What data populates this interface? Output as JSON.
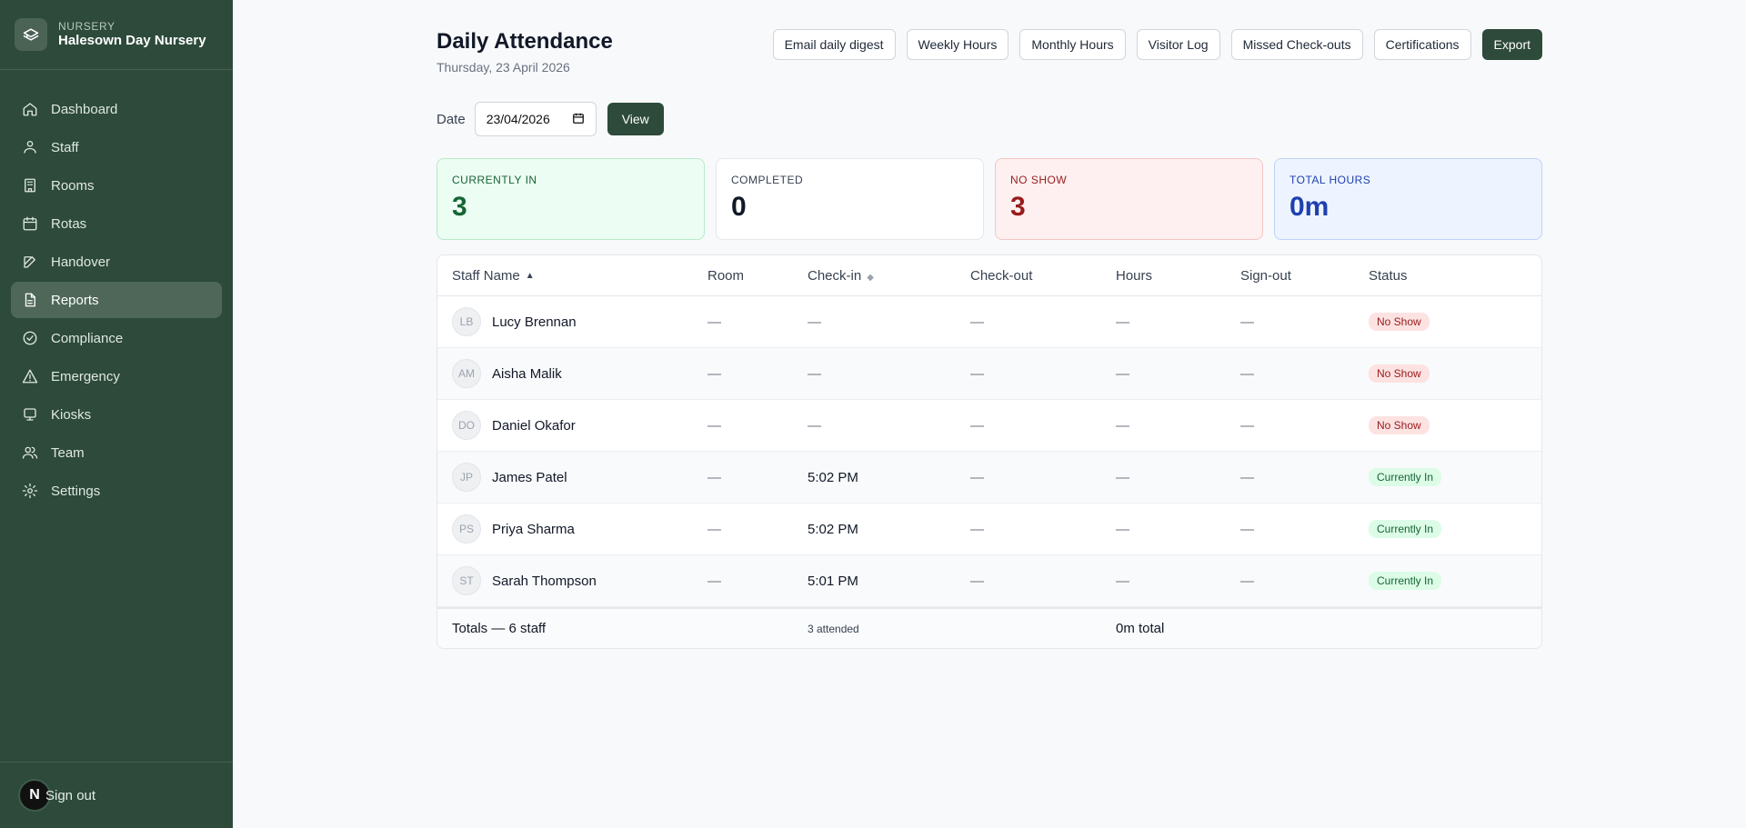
{
  "brand": {
    "kicker": "NURSERY",
    "name": "Halesown Day Nursery"
  },
  "nav": [
    {
      "label": "Dashboard",
      "icon": "home-icon"
    },
    {
      "label": "Staff",
      "icon": "person-icon"
    },
    {
      "label": "Rooms",
      "icon": "building-icon"
    },
    {
      "label": "Rotas",
      "icon": "calendar-icon"
    },
    {
      "label": "Handover",
      "icon": "edit-icon"
    },
    {
      "label": "Reports",
      "icon": "document-icon",
      "active": true
    },
    {
      "label": "Compliance",
      "icon": "check-circle-icon"
    },
    {
      "label": "Emergency",
      "icon": "warning-icon"
    },
    {
      "label": "Kiosks",
      "icon": "tablet-icon"
    },
    {
      "label": "Team",
      "icon": "team-icon"
    },
    {
      "label": "Settings",
      "icon": "gear-icon"
    }
  ],
  "footer": {
    "avatar": "N",
    "signout": "Sign out"
  },
  "header": {
    "title": "Daily Attendance",
    "date": "Thursday, 23 April 2026",
    "actions": [
      "Email daily digest",
      "Weekly Hours",
      "Monthly Hours",
      "Visitor Log",
      "Missed Check-outs",
      "Certifications"
    ],
    "export": "Export"
  },
  "filter": {
    "label": "Date",
    "value": "23/04/2026",
    "view": "View"
  },
  "stats": [
    {
      "label": "CURRENTLY IN",
      "value": "3"
    },
    {
      "label": "COMPLETED",
      "value": "0"
    },
    {
      "label": "NO SHOW",
      "value": "3"
    },
    {
      "label": "TOTAL HOURS",
      "value": "0m"
    }
  ],
  "table": {
    "columns": [
      "Staff Name",
      "Room",
      "Check-in",
      "Check-out",
      "Hours",
      "Sign-out",
      "Status"
    ],
    "rows": [
      {
        "initials": "LB",
        "name": "Lucy Brennan",
        "room": "—",
        "checkin": "—",
        "checkout": "—",
        "hours": "—",
        "signout": "—",
        "status": "No Show"
      },
      {
        "initials": "AM",
        "name": "Aisha Malik",
        "room": "—",
        "checkin": "—",
        "checkout": "—",
        "hours": "—",
        "signout": "—",
        "status": "No Show"
      },
      {
        "initials": "DO",
        "name": "Daniel Okafor",
        "room": "—",
        "checkin": "—",
        "checkout": "—",
        "hours": "—",
        "signout": "—",
        "status": "No Show"
      },
      {
        "initials": "JP",
        "name": "James Patel",
        "room": "—",
        "checkin": "5:02 PM",
        "checkout": "—",
        "hours": "—",
        "signout": "—",
        "status": "Currently In"
      },
      {
        "initials": "PS",
        "name": "Priya Sharma",
        "room": "—",
        "checkin": "5:02 PM",
        "checkout": "—",
        "hours": "—",
        "signout": "—",
        "status": "Currently In"
      },
      {
        "initials": "ST",
        "name": "Sarah Thompson",
        "room": "—",
        "checkin": "5:01 PM",
        "checkout": "—",
        "hours": "—",
        "signout": "—",
        "status": "Currently In"
      }
    ],
    "footer": {
      "totals": "Totals — 6 staff",
      "attended": "3 attended",
      "hours_total": "0m total"
    }
  }
}
